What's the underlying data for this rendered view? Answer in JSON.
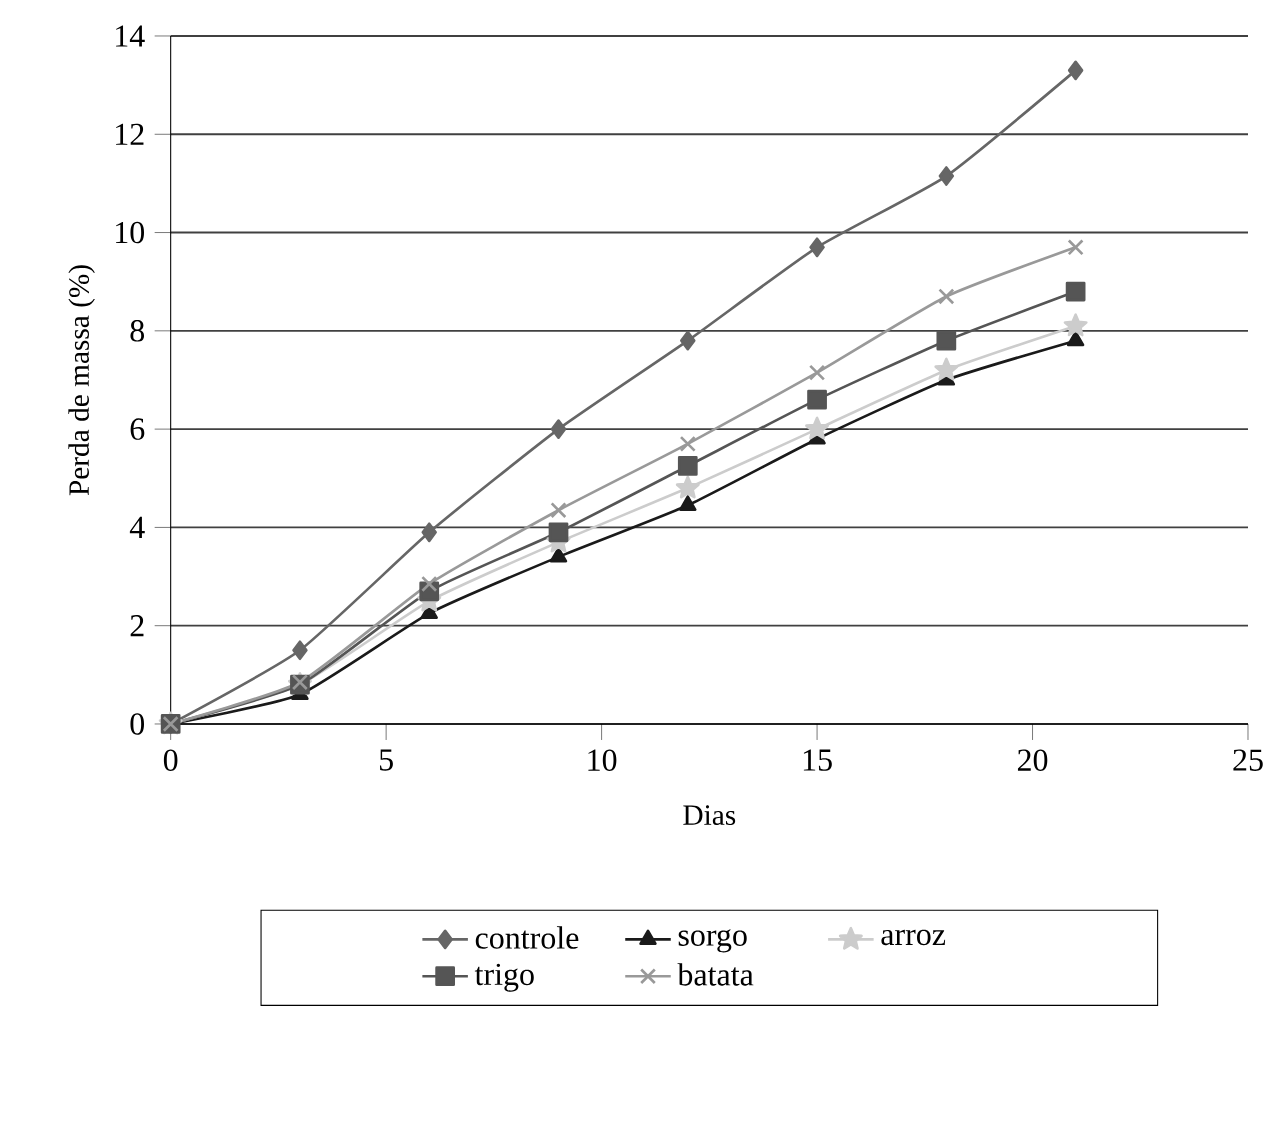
{
  "chart_data": {
    "type": "line",
    "xlabel": "Dias",
    "ylabel": "Perda de massa (%)",
    "x": [
      0,
      3,
      6,
      9,
      12,
      15,
      18,
      21
    ],
    "xlim": [
      0,
      25
    ],
    "xticks": [
      0,
      5,
      10,
      15,
      20,
      25
    ],
    "ylim": [
      0,
      14
    ],
    "yticks": [
      0,
      2,
      4,
      6,
      8,
      10,
      12,
      14
    ],
    "grid": "y",
    "legend": "bottom",
    "line_style": "solid",
    "series": [
      {
        "name": "controle",
        "color": "#666666",
        "marker": "diamond",
        "values": [
          0,
          1.5,
          3.9,
          6.0,
          7.8,
          9.7,
          11.15,
          13.3
        ]
      },
      {
        "name": "sorgo",
        "color": "#1a1a1a",
        "marker": "triangle",
        "values": [
          0,
          0.6,
          2.25,
          3.4,
          4.45,
          5.8,
          7.0,
          7.8
        ]
      },
      {
        "name": "arroz",
        "color": "#cccccc",
        "marker": "star",
        "values": [
          0,
          0.8,
          2.5,
          3.7,
          4.8,
          6.0,
          7.2,
          8.1
        ]
      },
      {
        "name": "trigo",
        "color": "#555555",
        "marker": "square",
        "values": [
          0,
          0.8,
          2.7,
          3.9,
          5.25,
          6.6,
          7.8,
          8.8
        ]
      },
      {
        "name": "batata",
        "color": "#999999",
        "marker": "cross",
        "values": [
          0,
          0.85,
          2.85,
          4.35,
          5.7,
          7.15,
          8.7,
          9.7
        ]
      }
    ]
  }
}
